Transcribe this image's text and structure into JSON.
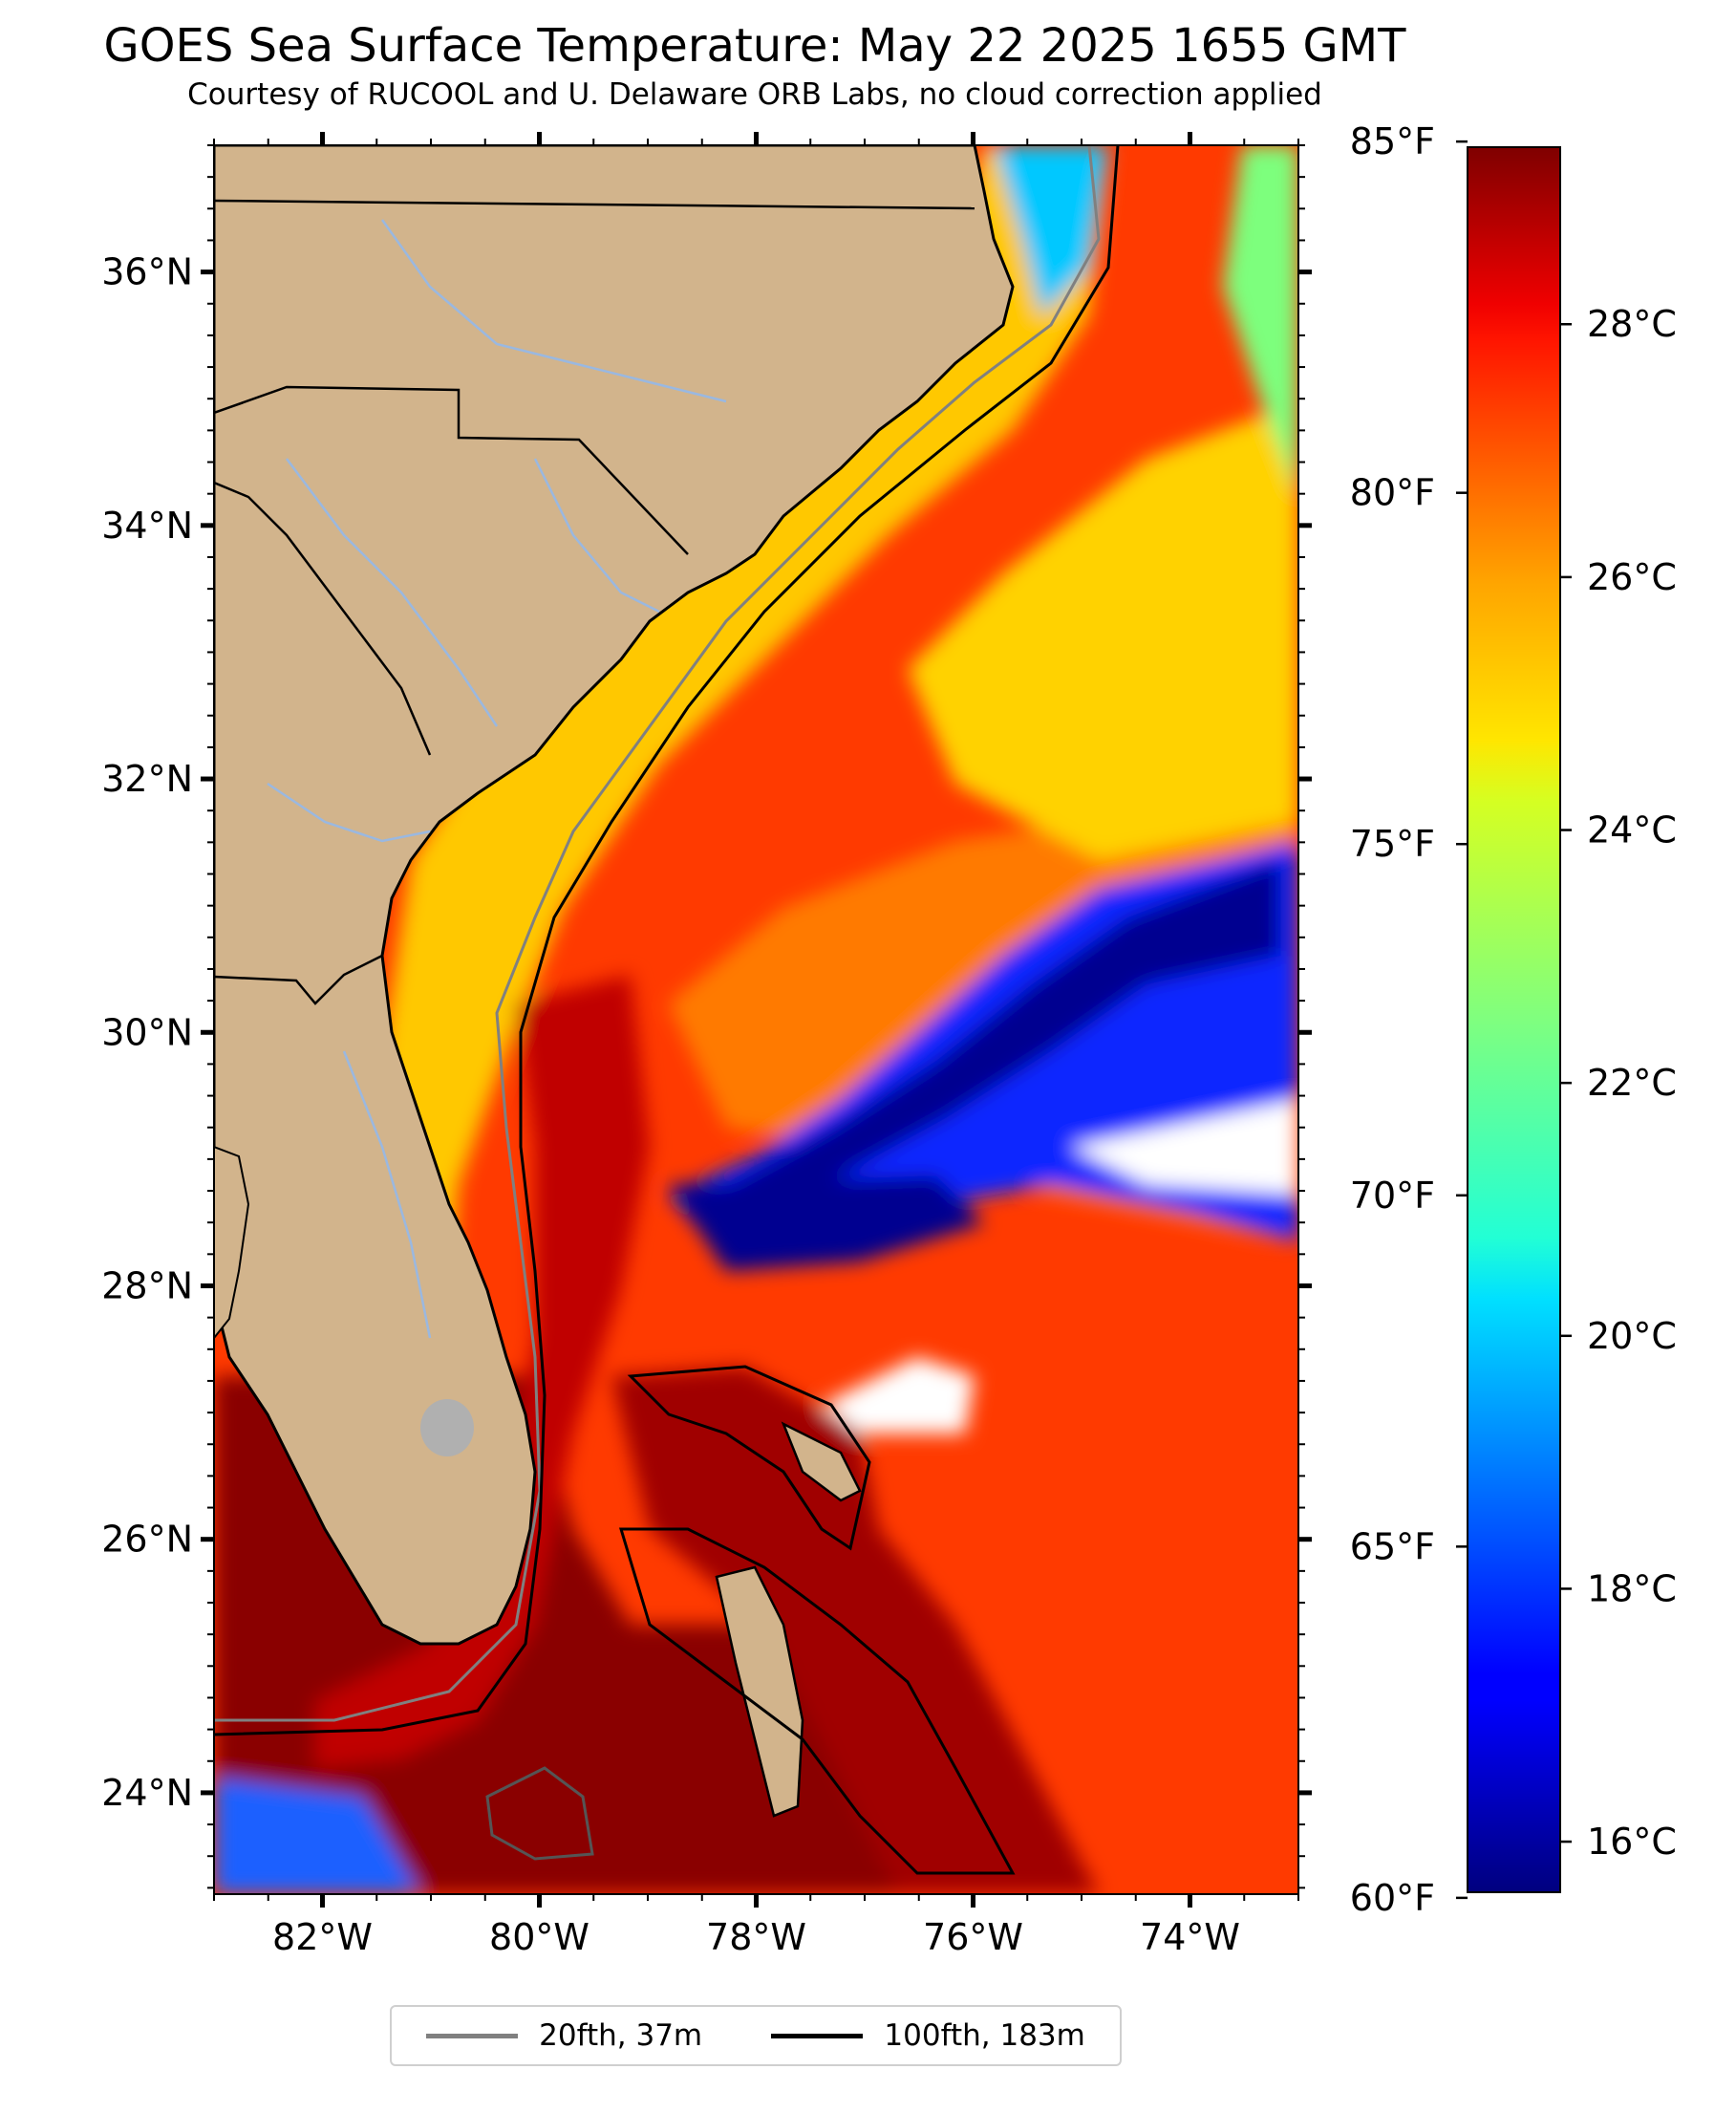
{
  "title": "GOES Sea Surface Temperature: May 22 2025 1655 GMT",
  "subtitle": "Courtesy of RUCOOL and U. Delaware ORB Labs, no cloud correction applied",
  "map": {
    "extent": {
      "lon": [
        -83,
        -73
      ],
      "lat": [
        23.2,
        37
      ]
    },
    "lat_ticks": [
      {
        "value": 24,
        "label": "24°N"
      },
      {
        "value": 26,
        "label": "26°N"
      },
      {
        "value": 28,
        "label": "28°N"
      },
      {
        "value": 30,
        "label": "30°N"
      },
      {
        "value": 32,
        "label": "32°N"
      },
      {
        "value": 34,
        "label": "34°N"
      },
      {
        "value": 36,
        "label": "36°N"
      }
    ],
    "lon_ticks": [
      {
        "value": -82,
        "label": "82°W"
      },
      {
        "value": -80,
        "label": "80°W"
      },
      {
        "value": -78,
        "label": "78°W"
      },
      {
        "value": -76,
        "label": "76°W"
      },
      {
        "value": -74,
        "label": "74°W"
      }
    ],
    "colors": {
      "land": "#d2b48c",
      "state_border": "#000000",
      "rivers": "#9ab8e0",
      "contour_20fth": "#808080",
      "contour_100fth": "#000000",
      "no_data": "#ffffff"
    }
  },
  "colorbar": {
    "colormap": "jet",
    "range_c": [
      15.6,
      29.4
    ],
    "celsius_ticks": [
      {
        "value": 16,
        "label": "16°C"
      },
      {
        "value": 18,
        "label": "18°C"
      },
      {
        "value": 20,
        "label": "20°C"
      },
      {
        "value": 22,
        "label": "22°C"
      },
      {
        "value": 24,
        "label": "24°C"
      },
      {
        "value": 26,
        "label": "26°C"
      },
      {
        "value": 28,
        "label": "28°C"
      }
    ],
    "fahrenheit_ticks": [
      {
        "value": 60,
        "label": "60°F"
      },
      {
        "value": 65,
        "label": "65°F"
      },
      {
        "value": 70,
        "label": "70°F"
      },
      {
        "value": 75,
        "label": "75°F"
      },
      {
        "value": 80,
        "label": "80°F"
      },
      {
        "value": 85,
        "label": "85°F"
      }
    ]
  },
  "legend": {
    "entries": [
      {
        "label": "20fth, 37m",
        "color": "#808080"
      },
      {
        "label": "100fth, 183m",
        "color": "#000000"
      }
    ]
  }
}
